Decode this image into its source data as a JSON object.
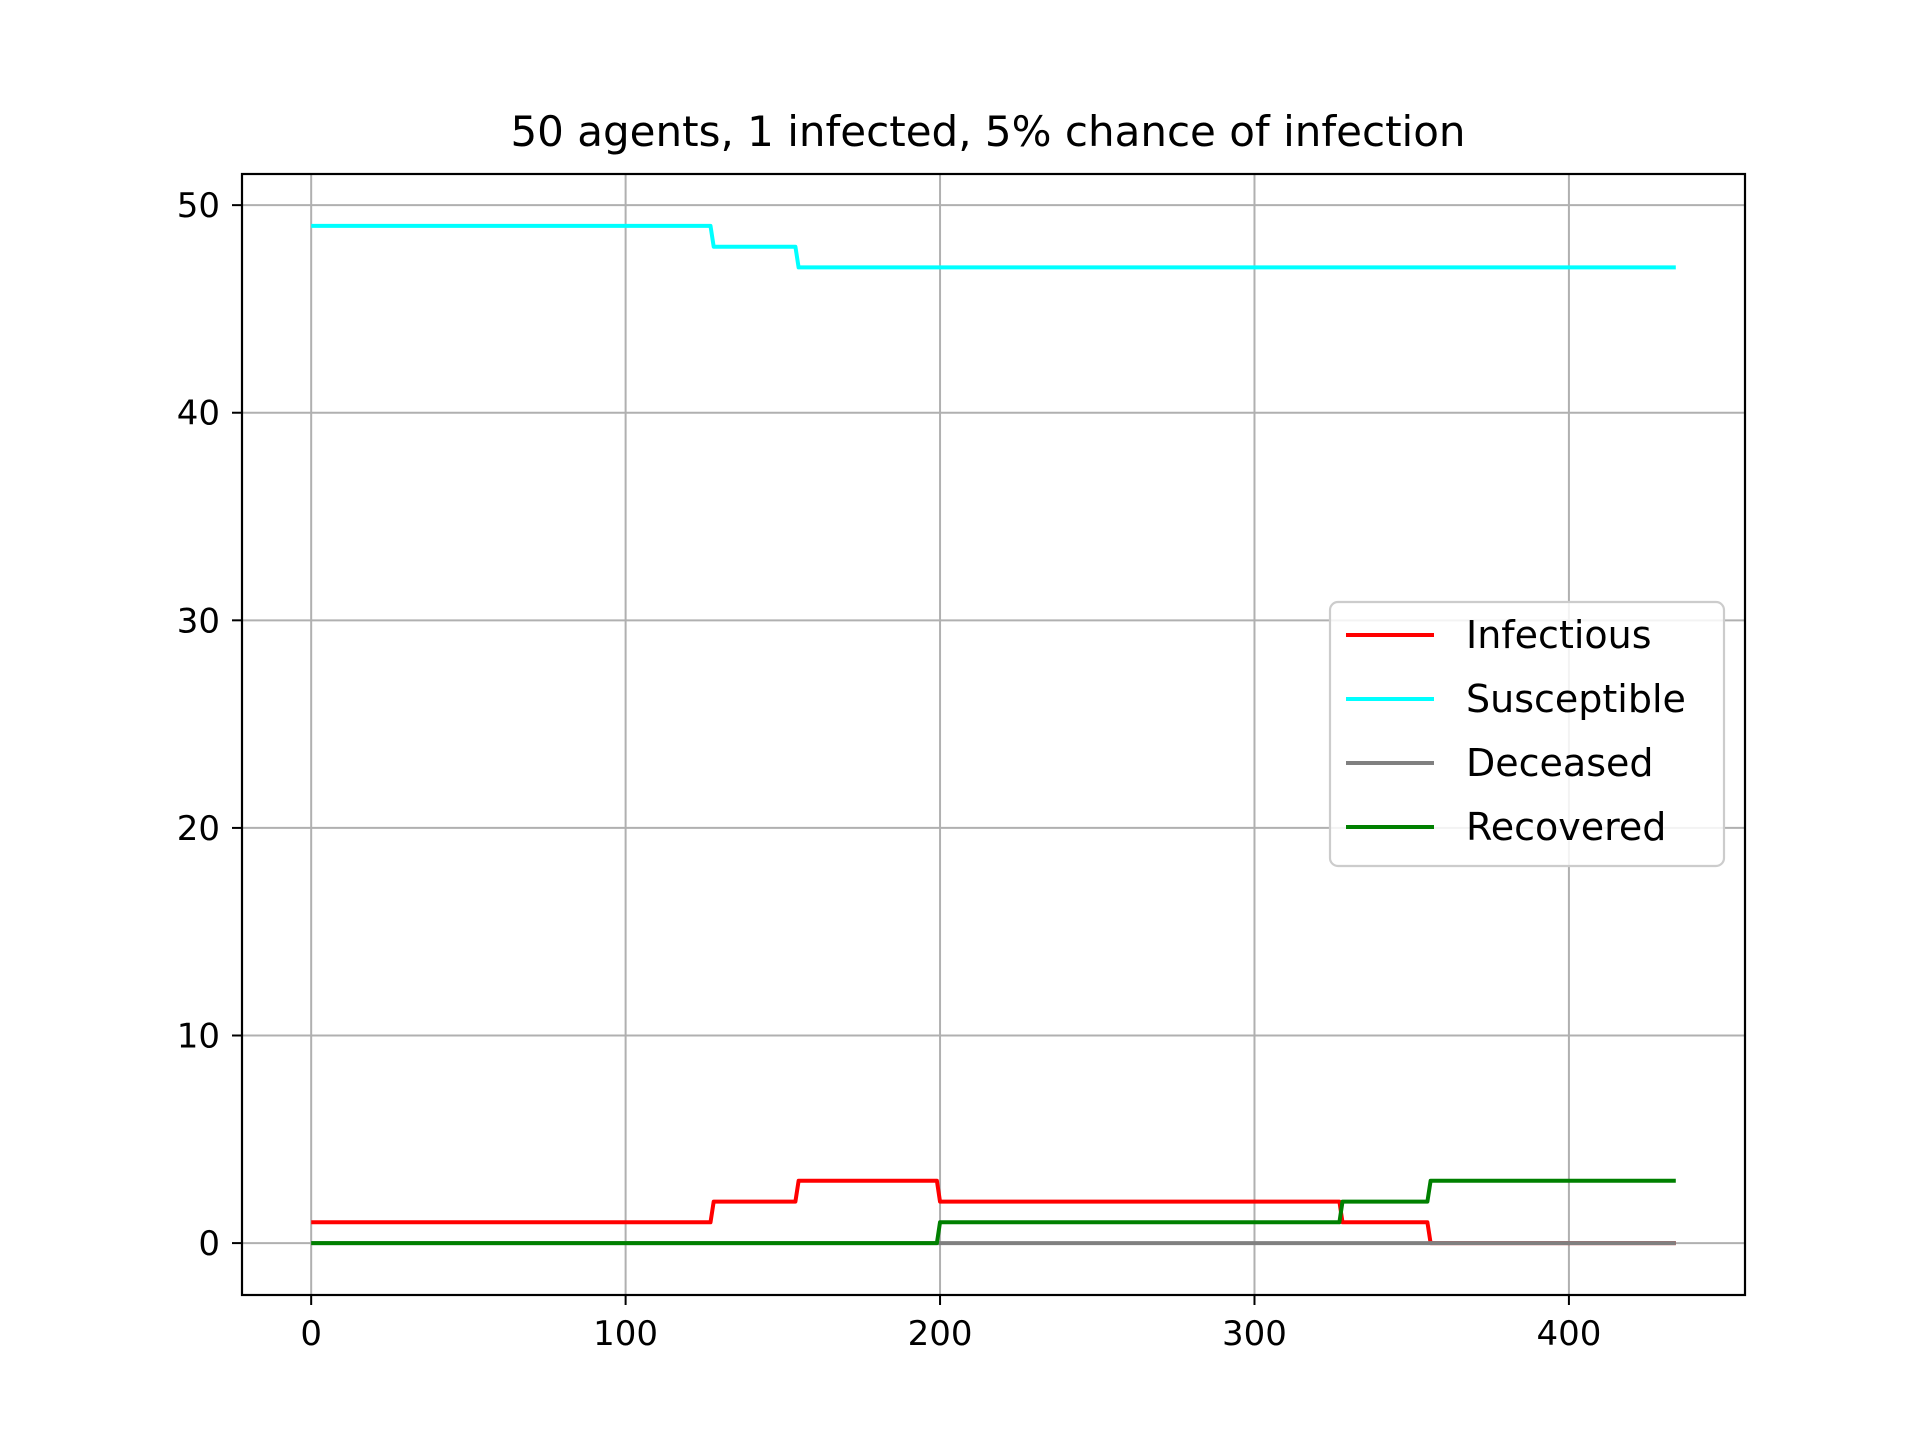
{
  "chart_data": {
    "type": "line",
    "title": "50 agents, 1 infected, 5% chance of infection",
    "xlabel": "",
    "ylabel": "",
    "xlim": [
      -22,
      456
    ],
    "ylim": [
      -2.5,
      51.5
    ],
    "xticks": [
      0,
      100,
      200,
      300,
      400
    ],
    "yticks": [
      0,
      10,
      20,
      30,
      40,
      50
    ],
    "grid": true,
    "legend_position": "center-right",
    "series": [
      {
        "name": "Infectious",
        "color": "#ff0000",
        "x": [
          0,
          127,
          128,
          154,
          155,
          199,
          200,
          327,
          328,
          355,
          356,
          434
        ],
        "y": [
          1,
          1,
          2,
          2,
          3,
          3,
          2,
          2,
          1,
          1,
          0,
          0
        ]
      },
      {
        "name": "Susceptible",
        "color": "#00ffff",
        "x": [
          0,
          127,
          128,
          154,
          155,
          434
        ],
        "y": [
          49,
          49,
          48,
          48,
          47,
          47
        ]
      },
      {
        "name": "Deceased",
        "color": "#808080",
        "x": [
          0,
          434
        ],
        "y": [
          0,
          0
        ]
      },
      {
        "name": "Recovered",
        "color": "#008000",
        "x": [
          0,
          199,
          200,
          327,
          328,
          355,
          356,
          434
        ],
        "y": [
          0,
          0,
          1,
          1,
          2,
          2,
          3,
          3
        ]
      }
    ]
  }
}
